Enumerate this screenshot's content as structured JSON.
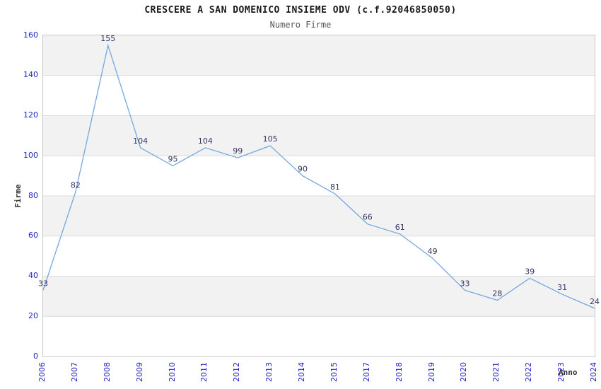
{
  "figure": {
    "colors": {
      "tick_label": "#2222cc",
      "line": "#74a7de",
      "data_label": "#333366",
      "band": "#f2f2f2",
      "plot_border": "#c9c9c9",
      "gridline": "#dcdcdc",
      "title": "#1a1a1a",
      "subtitle": "#555555"
    }
  },
  "chart_data": {
    "type": "line",
    "title": "CRESCERE A SAN DOMENICO INSIEME ODV (c.f.92046850050)",
    "subtitle": "Numero Firme",
    "xlabel": "Anno",
    "ylabel": "Firme",
    "categories": [
      "2006",
      "2007",
      "2008",
      "2009",
      "2010",
      "2011",
      "2012",
      "2013",
      "2014",
      "2015",
      "2017",
      "2018",
      "2019",
      "2020",
      "2021",
      "2022",
      "2023",
      "2024"
    ],
    "values": [
      33,
      82,
      155,
      104,
      95,
      104,
      99,
      105,
      90,
      81,
      66,
      61,
      49,
      33,
      28,
      39,
      31,
      24
    ],
    "ylim": [
      0,
      160
    ],
    "yticks": [
      0,
      20,
      40,
      60,
      80,
      100,
      120,
      140,
      160
    ],
    "grid": "horizontal alternating bands, line every 20",
    "legend": "none",
    "data_labels": "shown above each point",
    "x_tick_rotation": -90
  }
}
